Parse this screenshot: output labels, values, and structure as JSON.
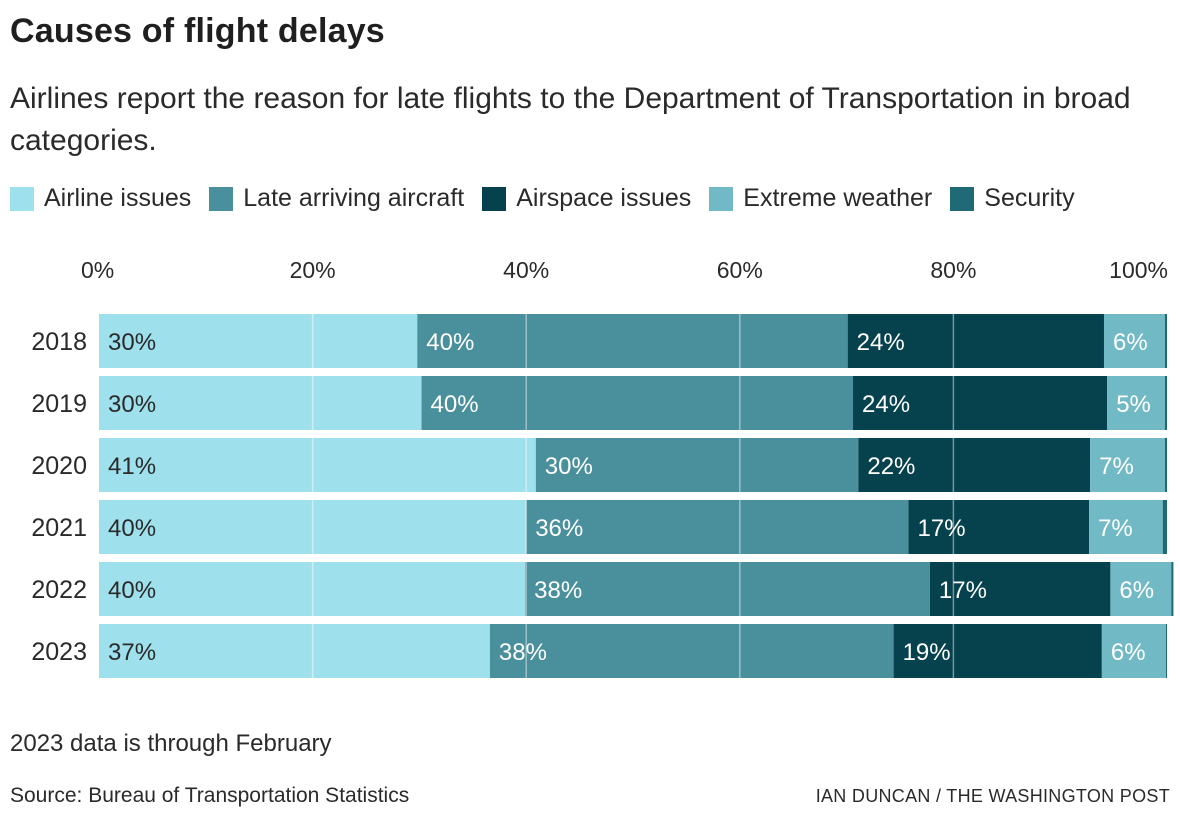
{
  "header": {
    "title": "Causes of flight delays",
    "subtitle": "Airlines report the reason for late flights to the Department of Transportation in broad categories."
  },
  "legend": [
    {
      "label": "Airline issues",
      "color": "#9ee0ec"
    },
    {
      "label": "Late arriving aircraft",
      "color": "#4a8f9c"
    },
    {
      "label": "Airspace issues",
      "color": "#06424d"
    },
    {
      "label": "Extreme weather",
      "color": "#72b9c6"
    },
    {
      "label": "Security",
      "color": "#1f6a75"
    }
  ],
  "chart_data": {
    "type": "bar",
    "orientation": "horizontal",
    "stacked": true,
    "title": "Causes of flight delays",
    "subtitle": "Airlines report the reason for late flights to the Department of Transportation in broad categories.",
    "xlabel": "",
    "ylabel": "",
    "xlim": [
      0,
      100
    ],
    "xticks": [
      0,
      20,
      40,
      60,
      80,
      100
    ],
    "xtick_labels": [
      "0%",
      "20%",
      "40%",
      "60%",
      "80%",
      "100%"
    ],
    "x_axis_position": "top",
    "grid": true,
    "legend_position": "top-left",
    "categories": [
      "2018",
      "2019",
      "2020",
      "2021",
      "2022",
      "2023"
    ],
    "series": [
      {
        "name": "Airline issues",
        "color": "#9ee0ec",
        "label_color": "#2a2a2a",
        "values": [
          29.8,
          30.2,
          40.9,
          40.0,
          39.9,
          36.6
        ],
        "labels": [
          "30%",
          "30%",
          "41%",
          "40%",
          "40%",
          "37%"
        ]
      },
      {
        "name": "Late arriving aircraft",
        "color": "#4a8f9c",
        "label_color": "#ffffff",
        "values": [
          40.3,
          40.4,
          30.2,
          35.8,
          37.9,
          37.8
        ],
        "labels": [
          "40%",
          "40%",
          "30%",
          "36%",
          "38%",
          "38%"
        ]
      },
      {
        "name": "Airspace issues",
        "color": "#06424d",
        "label_color": "#ffffff",
        "values": [
          24.0,
          23.8,
          21.7,
          16.9,
          16.9,
          19.5
        ],
        "labels": [
          "24%",
          "24%",
          "22%",
          "17%",
          "17%",
          "19%"
        ]
      },
      {
        "name": "Extreme weather",
        "color": "#72b9c6",
        "label_color": "#ffffff",
        "values": [
          5.7,
          5.4,
          7.0,
          6.9,
          5.7,
          6.0
        ],
        "labels": [
          "6%",
          "5%",
          "7%",
          "7%",
          "6%",
          "6%"
        ]
      },
      {
        "name": "Security",
        "color": "#1f6a75",
        "label_color": "#ffffff",
        "values": [
          0.2,
          0.2,
          0.2,
          0.4,
          0.2,
          0.1
        ],
        "labels": [
          "",
          "",
          "",
          "",
          "",
          ""
        ]
      }
    ]
  },
  "footer": {
    "note": "2023 data is through February",
    "source": "Source: Bureau of Transportation Statistics",
    "credit": "IAN DUNCAN / THE WASHINGTON POST"
  }
}
